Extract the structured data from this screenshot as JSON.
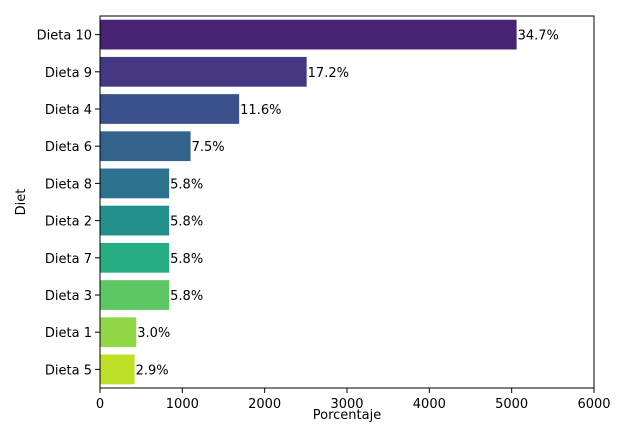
{
  "chart_data": {
    "type": "bar",
    "orientation": "horizontal",
    "title": "",
    "xlabel": "Porcentaje",
    "ylabel": "Diet",
    "xlim": [
      0,
      6000
    ],
    "xticks": [
      "0",
      "1000",
      "2000",
      "3000",
      "4000",
      "5000",
      "6000"
    ],
    "grid": false,
    "categories": [
      "Dieta 10",
      "Dieta 9",
      "Dieta 4",
      "Dieta 6",
      "Dieta 8",
      "Dieta 2",
      "Dieta 7",
      "Dieta 3",
      "Dieta 1",
      "Dieta 5"
    ],
    "values": [
      5060,
      2510,
      1690,
      1100,
      840,
      840,
      840,
      840,
      440,
      420
    ],
    "data_labels": [
      "34.7%",
      "17.2%",
      "11.6%",
      "7.5%",
      "5.8%",
      "5.8%",
      "5.8%",
      "5.8%",
      "3.0%",
      "2.9%"
    ],
    "colors": [
      "#482374",
      "#453781",
      "#3b518b",
      "#33638d",
      "#2c728e",
      "#21908d",
      "#27ad81",
      "#5dc863",
      "#8fd744",
      "#bddf26"
    ]
  }
}
